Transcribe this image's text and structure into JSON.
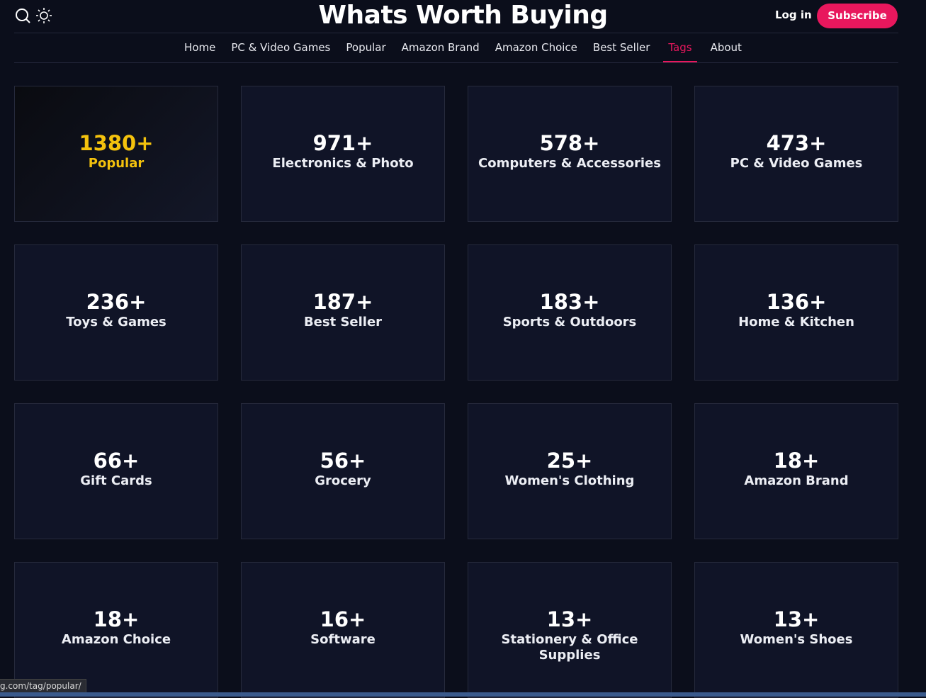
{
  "header": {
    "title": "Whats Worth Buying",
    "login": "Log in",
    "subscribe": "Subscribe"
  },
  "nav": {
    "items": [
      "Home",
      "PC & Video Games",
      "Popular",
      "Amazon Brand",
      "Amazon Choice",
      "Best Seller",
      "Tags",
      "About"
    ],
    "active": 6
  },
  "tags": [
    {
      "count": "1380+",
      "name": "Popular"
    },
    {
      "count": "971+",
      "name": "Electronics & Photo"
    },
    {
      "count": "578+",
      "name": "Computers & Accessories"
    },
    {
      "count": "473+",
      "name": "PC & Video Games"
    },
    {
      "count": "236+",
      "name": "Toys & Games"
    },
    {
      "count": "187+",
      "name": "Best Seller"
    },
    {
      "count": "183+",
      "name": "Sports & Outdoors"
    },
    {
      "count": "136+",
      "name": "Home & Kitchen"
    },
    {
      "count": "66+",
      "name": "Gift Cards"
    },
    {
      "count": "56+",
      "name": "Grocery"
    },
    {
      "count": "25+",
      "name": "Women's Clothing"
    },
    {
      "count": "18+",
      "name": "Amazon Brand"
    },
    {
      "count": "18+",
      "name": "Amazon Choice"
    },
    {
      "count": "16+",
      "name": "Software"
    },
    {
      "count": "13+",
      "name": "Stationery & Office Supplies"
    },
    {
      "count": "13+",
      "name": "Women's Shoes"
    }
  ],
  "status_url": "g.com/tag/popular/"
}
